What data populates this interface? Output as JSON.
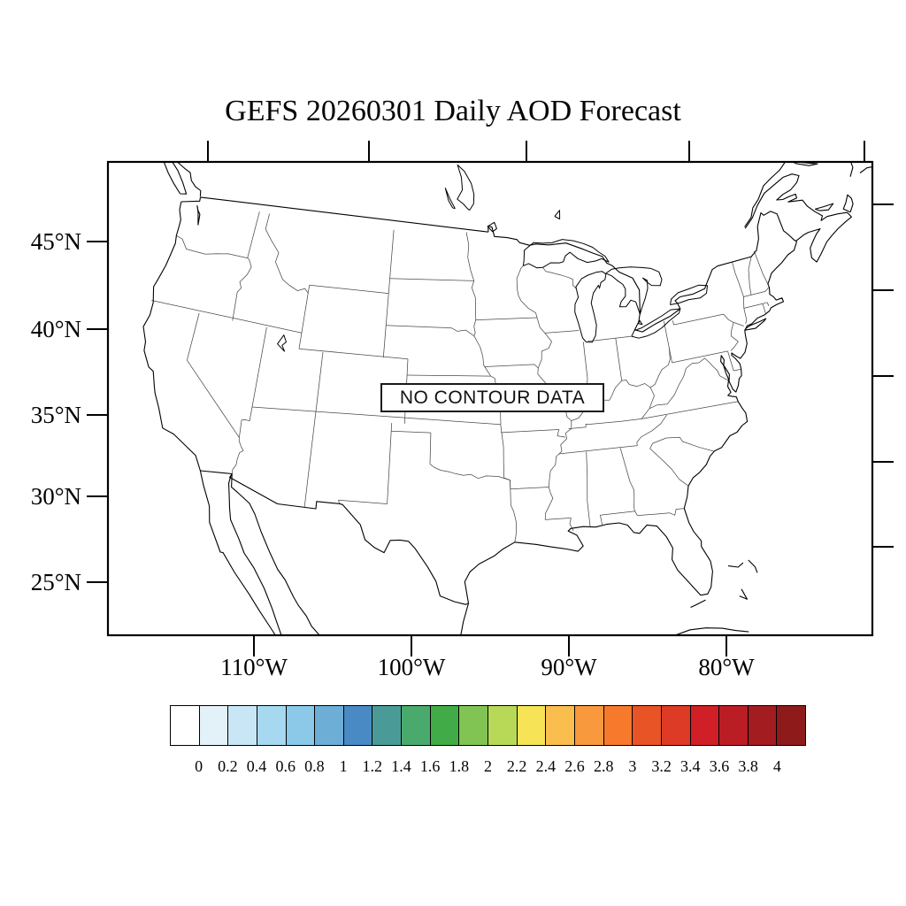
{
  "title": "GEFS 20260301 Daily AOD Forecast",
  "map": {
    "message": "NO CONTOUR DATA"
  },
  "axes": {
    "lat_labels": [
      "45°N",
      "40°N",
      "35°N",
      "30°N",
      "25°N"
    ],
    "lon_labels": [
      "110°W",
      "100°W",
      "90°W",
      "80°W"
    ]
  },
  "colorbar": {
    "tick_labels": [
      "0",
      "0.2",
      "0.4",
      "0.6",
      "0.8",
      "1",
      "1.2",
      "1.4",
      "1.6",
      "1.8",
      "2",
      "2.2",
      "2.4",
      "2.6",
      "2.8",
      "3",
      "3.2",
      "3.4",
      "3.6",
      "3.8",
      "4"
    ],
    "colors": [
      "#ffffff",
      "#e3f1f9",
      "#c9e6f6",
      "#a6d8f0",
      "#8cc8e8",
      "#6caed6",
      "#4a8ac4",
      "#4a9b98",
      "#4aaa6e",
      "#41ac47",
      "#82c454",
      "#b8d958",
      "#f6e356",
      "#f9be4d",
      "#f8993e",
      "#f6792c",
      "#e85426",
      "#dd3b25",
      "#d01f26",
      "#ba1e24",
      "#a21c20",
      "#8e1a19"
    ]
  }
}
